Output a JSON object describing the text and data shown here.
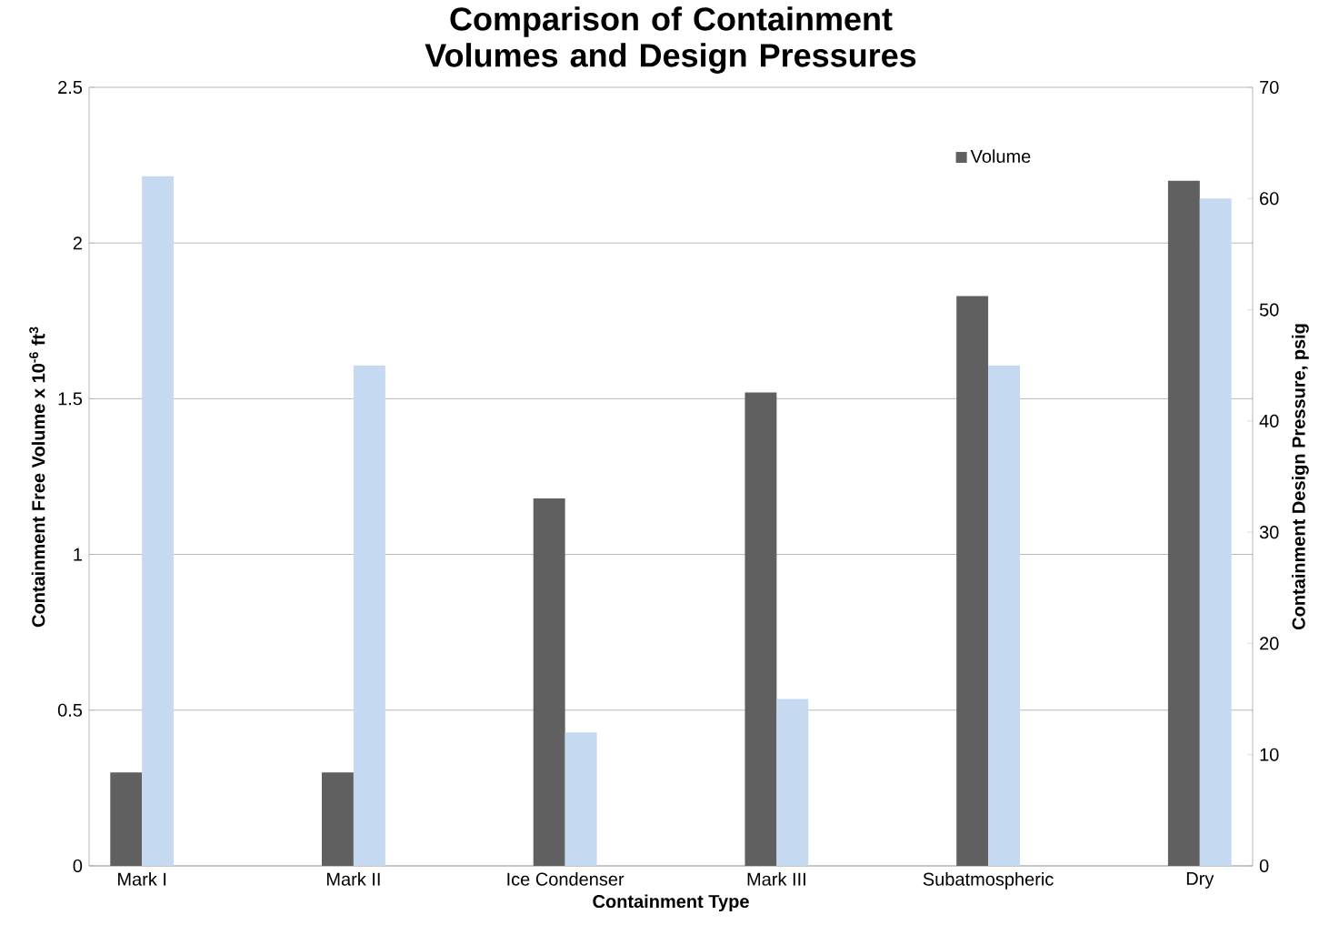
{
  "chart_data": {
    "type": "bar",
    "title": "Comparison of Containment Volumes and Design Pressures",
    "xlabel": "Containment Type",
    "ylabel": "Containment Free Volume x 10$^{-6}$ ft$^{3}$",
    "y2label": "Containment Design Pressure, psig",
    "categories": [
      "Mark I",
      "Mark II",
      "Ice Condenser",
      "Mark III",
      "Subatmospheric",
      "Dry"
    ],
    "series": [
      {
        "name": "Volume",
        "color": "#606060",
        "values": [
          0.3,
          0.3,
          1.18,
          1.52,
          1.83,
          2.2
        ]
      },
      {
        "color": "#c5d9f1",
        "axis": "y2",
        "values": [
          62,
          45,
          12,
          15,
          45,
          60
        ]
      }
    ],
    "ylim": [
      0,
      2.5
    ],
    "yticks": [
      0,
      0.5,
      1,
      1.5,
      2,
      2.5
    ],
    "y2lim": [
      0,
      70
    ],
    "y2ticks": [
      0,
      10,
      20,
      30,
      40,
      50,
      60,
      70
    ],
    "grid": "y",
    "legend": "top right"
  }
}
